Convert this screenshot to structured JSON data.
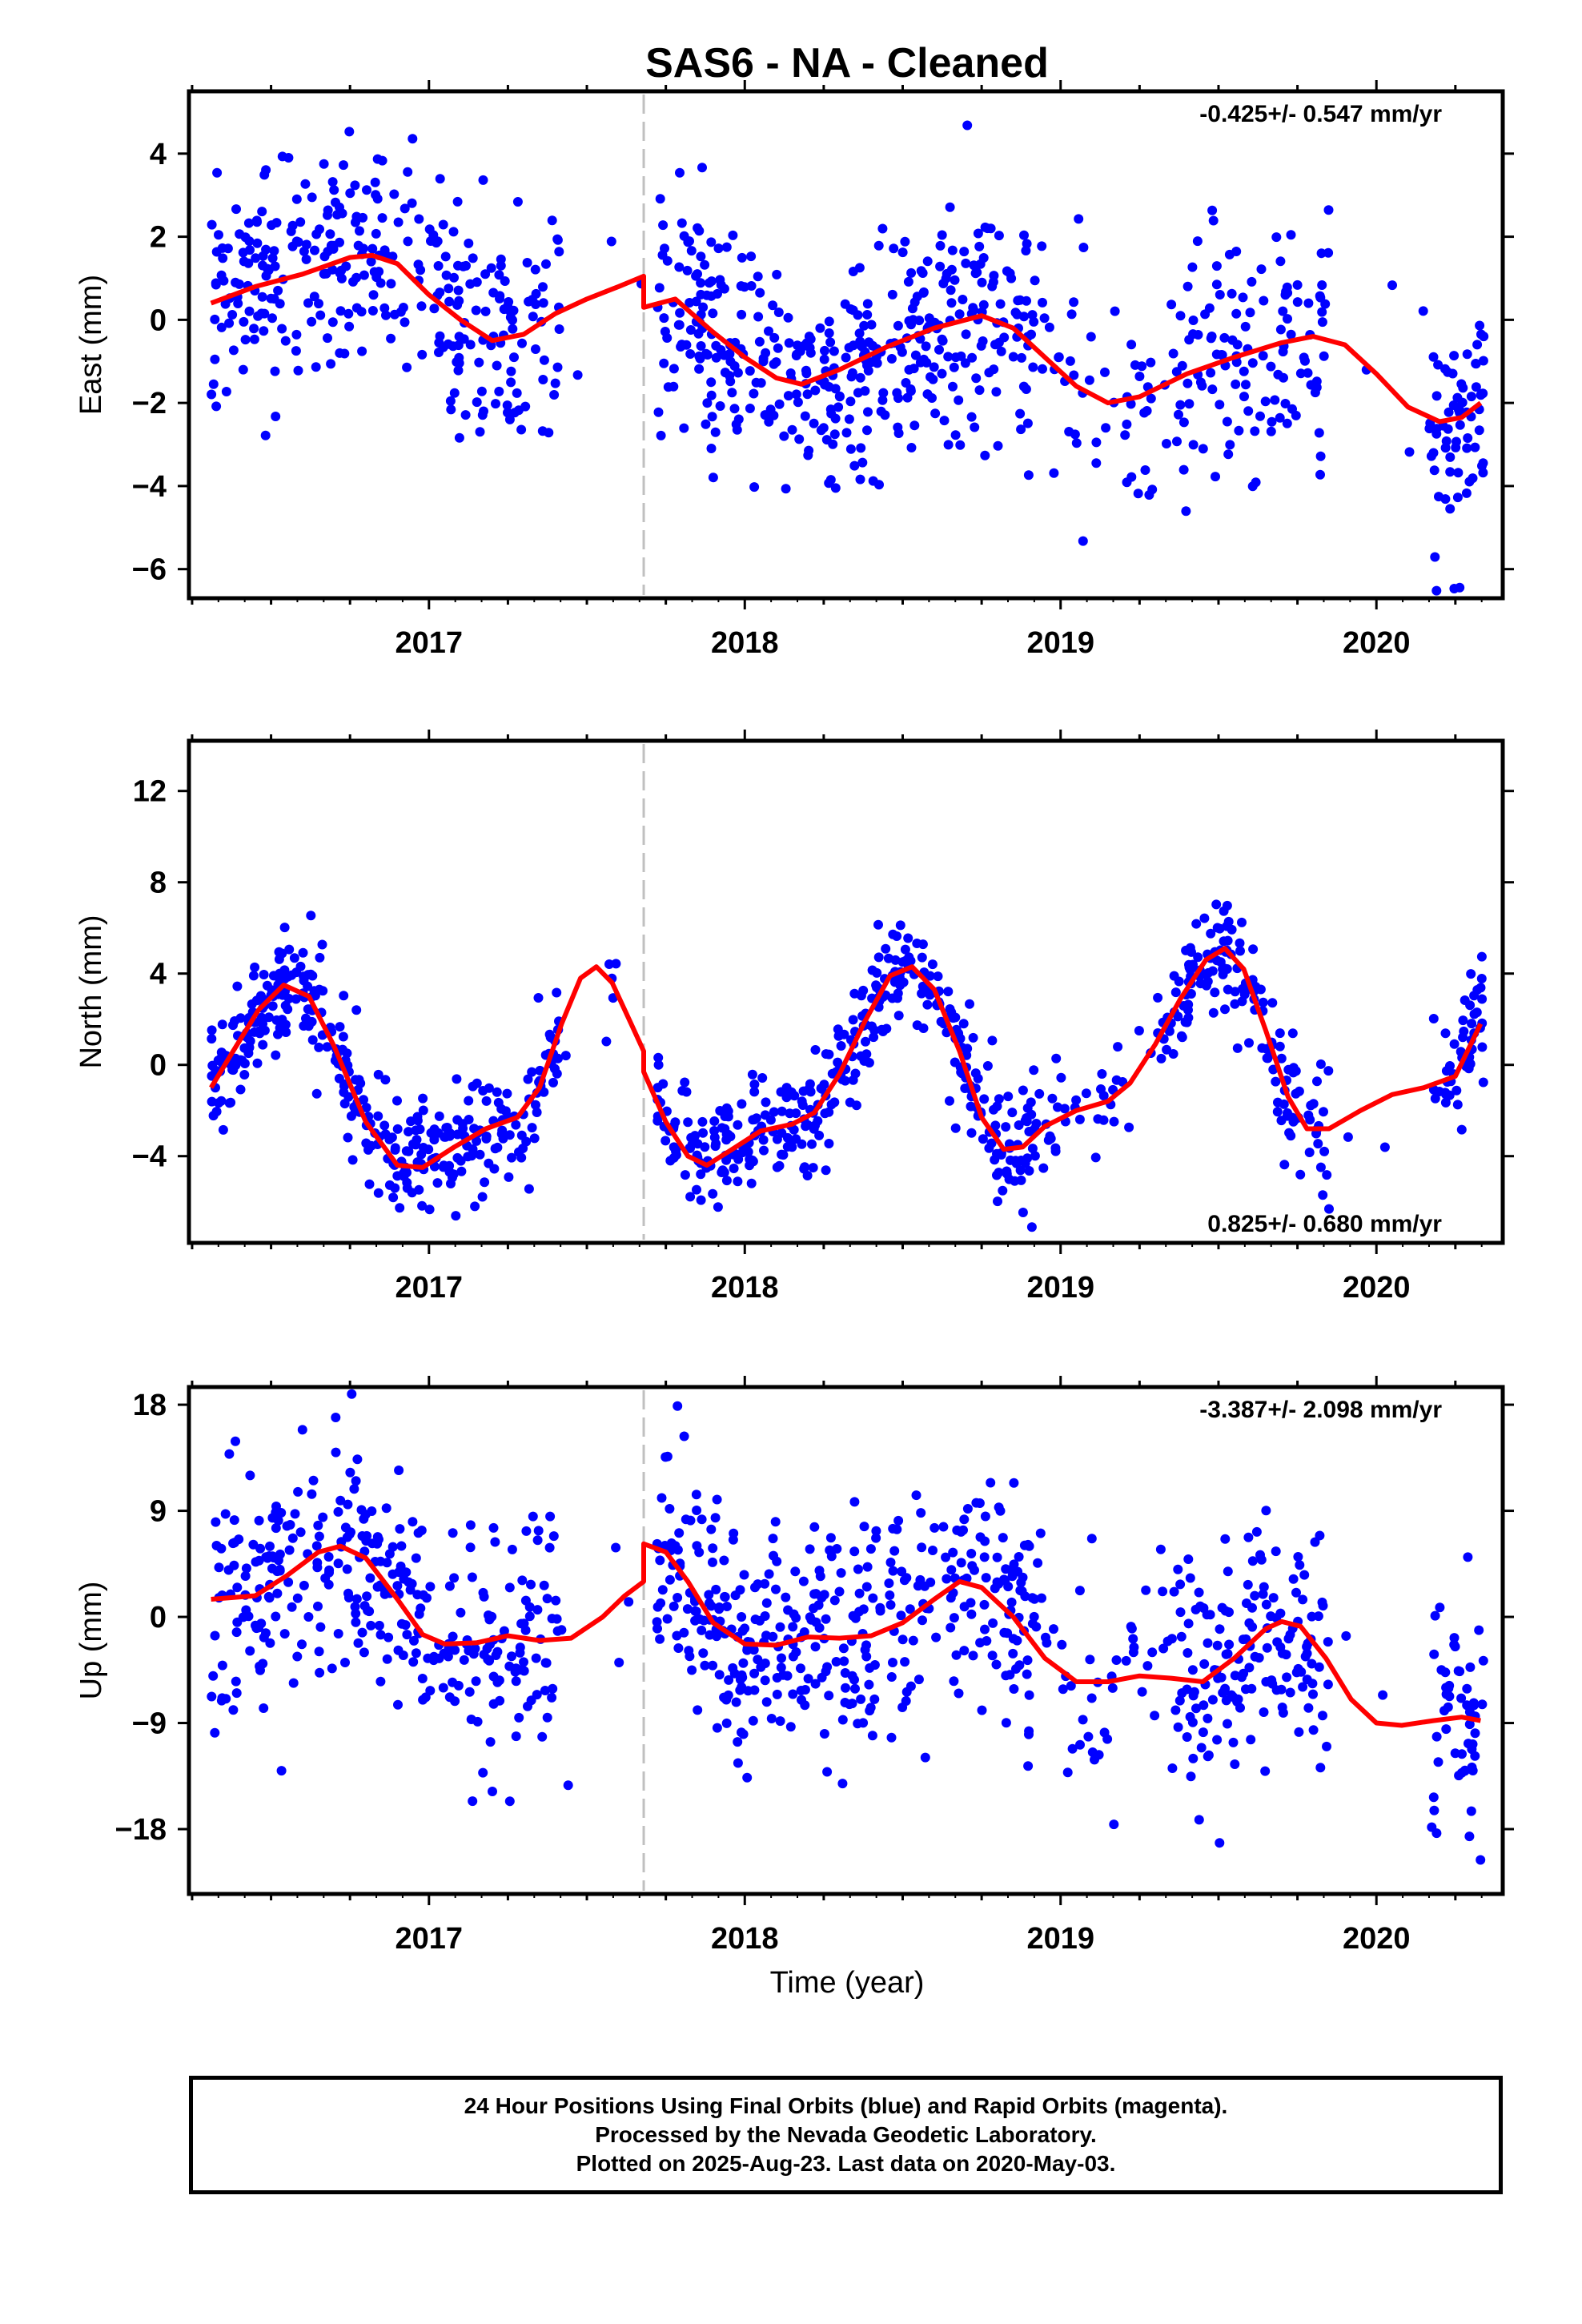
{
  "title": "SAS6  - NA - Cleaned",
  "xlabel": "Time (year)",
  "caption": {
    "line1": "24 Hour Positions Using Final Orbits (blue) and Rapid Orbits (magenta).",
    "line2": "Processed by the Nevada Geodetic Laboratory.",
    "line3": "Plotted on 2025-Aug-23. Last data on 2020-May-03."
  },
  "colors": {
    "points": "#0000ff",
    "model": "#ff0000",
    "break_line": "#c0c0c0",
    "frame": "#000000"
  },
  "chart_data": [
    {
      "type": "scatter",
      "name": "east",
      "ylabel": "East (mm)",
      "rate_text": "-0.425+/- 0.547 mm/yr",
      "rate_position": "top-right",
      "xlim": [
        2016.24,
        2020.4
      ],
      "ylim": [
        -6.7,
        5.5
      ],
      "yticks": [
        4,
        2,
        0,
        -2,
        -4,
        -6
      ],
      "xticks": [
        2017,
        2018,
        2019,
        2020
      ],
      "break_year": 2017.68,
      "model_line": [
        [
          2016.31,
          0.4
        ],
        [
          2016.45,
          0.8
        ],
        [
          2016.6,
          1.1
        ],
        [
          2016.75,
          1.5
        ],
        [
          2016.82,
          1.55
        ],
        [
          2016.9,
          1.35
        ],
        [
          2017.0,
          0.6
        ],
        [
          2017.1,
          0.0
        ],
        [
          2017.2,
          -0.5
        ],
        [
          2017.3,
          -0.35
        ],
        [
          2017.4,
          0.15
        ],
        [
          2017.5,
          0.5
        ],
        [
          2017.6,
          0.8
        ],
        [
          2017.68,
          1.05
        ],
        [
          2017.68,
          0.3
        ],
        [
          2017.78,
          0.5
        ],
        [
          2017.9,
          -0.3
        ],
        [
          2018.0,
          -0.9
        ],
        [
          2018.1,
          -1.4
        ],
        [
          2018.18,
          -1.55
        ],
        [
          2018.3,
          -1.2
        ],
        [
          2018.45,
          -0.65
        ],
        [
          2018.6,
          -0.2
        ],
        [
          2018.75,
          0.1
        ],
        [
          2018.85,
          -0.2
        ],
        [
          2018.95,
          -0.9
        ],
        [
          2019.05,
          -1.6
        ],
        [
          2019.15,
          -2.0
        ],
        [
          2019.25,
          -1.85
        ],
        [
          2019.4,
          -1.3
        ],
        [
          2019.55,
          -0.9
        ],
        [
          2019.7,
          -0.55
        ],
        [
          2019.8,
          -0.4
        ],
        [
          2019.9,
          -0.6
        ],
        [
          2020.0,
          -1.3
        ],
        [
          2020.1,
          -2.1
        ],
        [
          2020.2,
          -2.45
        ],
        [
          2020.27,
          -2.35
        ],
        [
          2020.33,
          -2.0
        ]
      ],
      "points": {
        "seed": 11,
        "description": "daily east positions"
      }
    },
    {
      "type": "scatter",
      "name": "north",
      "ylabel": "North (mm)",
      "rate_text": "0.825+/- 0.680 mm/yr",
      "rate_position": "bottom-right",
      "xlim": [
        2016.24,
        2020.4
      ],
      "ylim": [
        -7.8,
        14.2
      ],
      "yticks": [
        12,
        8,
        4,
        0,
        -4
      ],
      "xticks": [
        2017,
        2018,
        2019,
        2020
      ],
      "break_year": 2017.68,
      "model_line": [
        [
          2016.31,
          -1.0
        ],
        [
          2016.38,
          0.6
        ],
        [
          2016.46,
          2.4
        ],
        [
          2016.54,
          3.5
        ],
        [
          2016.62,
          3.0
        ],
        [
          2016.7,
          0.8
        ],
        [
          2016.8,
          -2.5
        ],
        [
          2016.9,
          -4.4
        ],
        [
          2016.98,
          -4.5
        ],
        [
          2017.08,
          -3.6
        ],
        [
          2017.18,
          -2.8
        ],
        [
          2017.28,
          -2.3
        ],
        [
          2017.35,
          -1.0
        ],
        [
          2017.42,
          1.8
        ],
        [
          2017.48,
          3.8
        ],
        [
          2017.53,
          4.3
        ],
        [
          2017.58,
          3.6
        ],
        [
          2017.64,
          1.8
        ],
        [
          2017.68,
          0.6
        ],
        [
          2017.68,
          -0.3
        ],
        [
          2017.75,
          -2.5
        ],
        [
          2017.82,
          -4.0
        ],
        [
          2017.88,
          -4.4
        ],
        [
          2017.96,
          -3.7
        ],
        [
          2018.05,
          -2.9
        ],
        [
          2018.15,
          -2.6
        ],
        [
          2018.22,
          -2.1
        ],
        [
          2018.3,
          -0.4
        ],
        [
          2018.38,
          1.9
        ],
        [
          2018.46,
          3.9
        ],
        [
          2018.53,
          4.3
        ],
        [
          2018.6,
          3.3
        ],
        [
          2018.68,
          0.6
        ],
        [
          2018.75,
          -2.3
        ],
        [
          2018.82,
          -3.7
        ],
        [
          2018.88,
          -3.6
        ],
        [
          2018.95,
          -2.7
        ],
        [
          2019.05,
          -2.0
        ],
        [
          2019.15,
          -1.6
        ],
        [
          2019.22,
          -0.8
        ],
        [
          2019.3,
          0.9
        ],
        [
          2019.38,
          2.9
        ],
        [
          2019.46,
          4.6
        ],
        [
          2019.52,
          5.1
        ],
        [
          2019.58,
          4.2
        ],
        [
          2019.65,
          1.5
        ],
        [
          2019.72,
          -1.4
        ],
        [
          2019.78,
          -2.8
        ],
        [
          2019.85,
          -2.8
        ],
        [
          2019.95,
          -2.0
        ],
        [
          2020.05,
          -1.3
        ],
        [
          2020.15,
          -1.0
        ],
        [
          2020.25,
          -0.5
        ],
        [
          2020.33,
          1.8
        ]
      ],
      "points": {
        "seed": 23,
        "description": "daily north positions"
      }
    },
    {
      "type": "scatter",
      "name": "up",
      "ylabel": "Up (mm)",
      "rate_text": "-3.387+/- 2.098 mm/yr",
      "rate_position": "top-right",
      "xlim": [
        2016.24,
        2020.4
      ],
      "ylim": [
        -23.5,
        19.5
      ],
      "yticks": [
        18,
        9,
        0,
        -9,
        -18
      ],
      "xticks": [
        2017,
        2018,
        2019,
        2020
      ],
      "break_year": 2017.68,
      "model_line": [
        [
          2016.31,
          1.5
        ],
        [
          2016.45,
          1.8
        ],
        [
          2016.55,
          3.5
        ],
        [
          2016.65,
          5.5
        ],
        [
          2016.72,
          6.0
        ],
        [
          2016.8,
          5.0
        ],
        [
          2016.9,
          1.5
        ],
        [
          2016.98,
          -1.5
        ],
        [
          2017.05,
          -2.3
        ],
        [
          2017.15,
          -2.2
        ],
        [
          2017.25,
          -1.6
        ],
        [
          2017.35,
          -2.0
        ],
        [
          2017.45,
          -1.8
        ],
        [
          2017.55,
          0.0
        ],
        [
          2017.62,
          1.8
        ],
        [
          2017.68,
          3.0
        ],
        [
          2017.68,
          6.2
        ],
        [
          2017.75,
          5.5
        ],
        [
          2017.82,
          3.0
        ],
        [
          2017.9,
          -0.5
        ],
        [
          2018.0,
          -2.3
        ],
        [
          2018.1,
          -2.4
        ],
        [
          2018.2,
          -1.7
        ],
        [
          2018.3,
          -1.8
        ],
        [
          2018.4,
          -1.6
        ],
        [
          2018.5,
          -0.5
        ],
        [
          2018.6,
          1.5
        ],
        [
          2018.68,
          3.0
        ],
        [
          2018.75,
          2.5
        ],
        [
          2018.85,
          0.0
        ],
        [
          2018.95,
          -3.5
        ],
        [
          2019.05,
          -5.5
        ],
        [
          2019.15,
          -5.5
        ],
        [
          2019.25,
          -5.0
        ],
        [
          2019.35,
          -5.2
        ],
        [
          2019.45,
          -5.5
        ],
        [
          2019.55,
          -3.5
        ],
        [
          2019.65,
          -1.0
        ],
        [
          2019.7,
          -0.4
        ],
        [
          2019.76,
          -0.8
        ],
        [
          2019.84,
          -3.5
        ],
        [
          2019.92,
          -7.0
        ],
        [
          2020.0,
          -9.0
        ],
        [
          2020.08,
          -9.2
        ],
        [
          2020.18,
          -8.8
        ],
        [
          2020.27,
          -8.5
        ],
        [
          2020.33,
          -8.8
        ]
      ],
      "points": {
        "seed": 37,
        "description": "daily vertical positions"
      }
    }
  ]
}
